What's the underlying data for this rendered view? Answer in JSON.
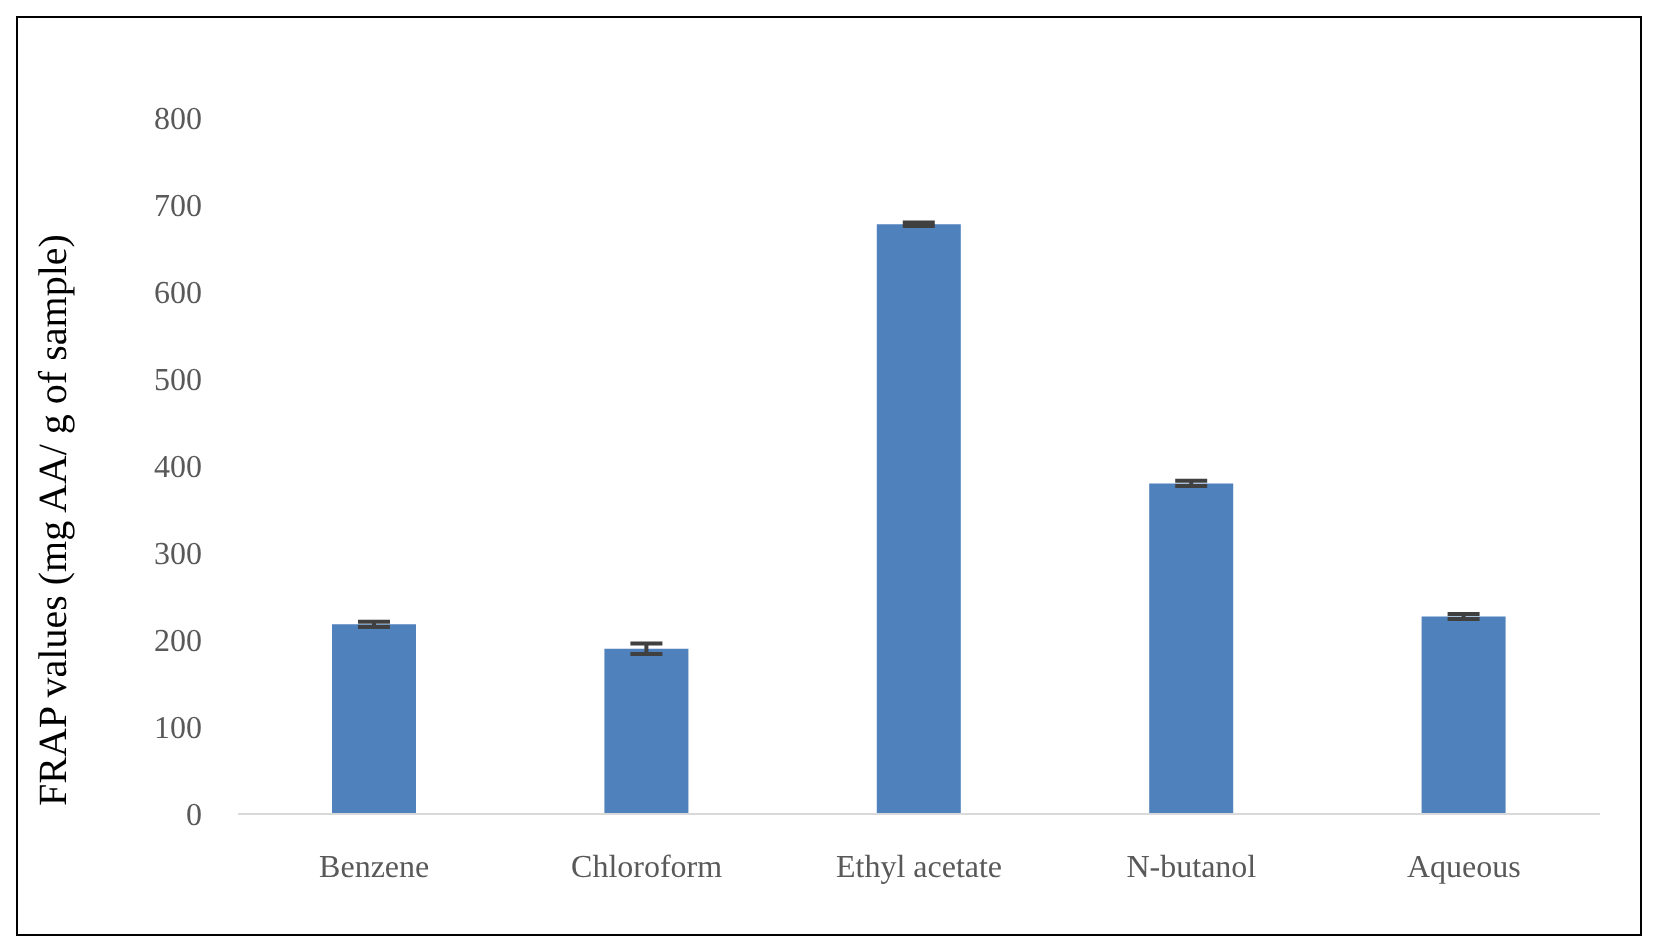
{
  "chart_data": {
    "type": "bar",
    "ylabel": "FRAP values (mg AA/ g of sample)",
    "categories": [
      "Benzene",
      "Chloroform",
      "Ethyl acetate",
      "N-butanol",
      "Aqueous"
    ],
    "values": [
      218,
      190,
      678,
      380,
      227
    ],
    "errors": [
      3,
      6,
      2,
      3,
      3
    ],
    "color": "#4f81bd",
    "ylim": [
      0,
      800
    ],
    "yticks": [
      0,
      100,
      200,
      300,
      400,
      500,
      600,
      700,
      800
    ],
    "grid": false,
    "legend": false
  }
}
